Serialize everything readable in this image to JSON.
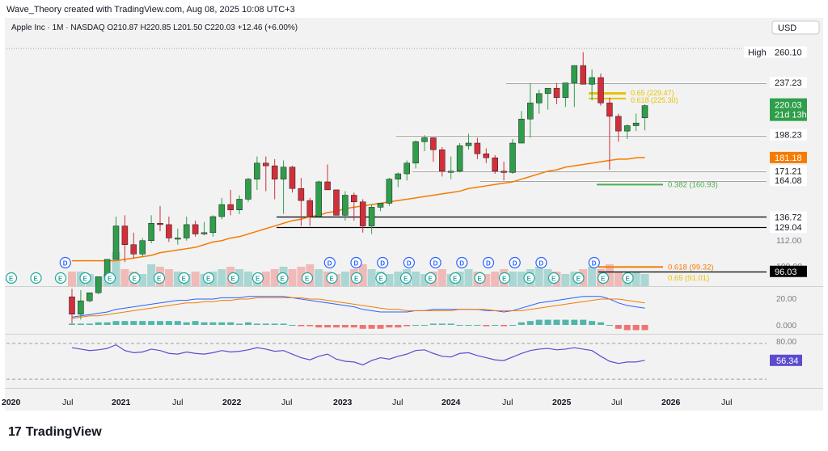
{
  "header": {
    "attribution": "Wave_Theory created with TradingView.com, Aug 08, 2025 10:08 UTC+3"
  },
  "legend": {
    "text": "Apple Inc · 1M · NASDAQ  O210.87  H220.85  L201.50  C220.03  +12.46 (+6.00%)"
  },
  "currency": "USD",
  "brand": {
    "name": "TradingView",
    "mark": "17"
  },
  "colors": {
    "up": "#26a69a",
    "up_fill": "#2e9e4a",
    "down": "#ef5350",
    "down_fill": "#d32f3a",
    "ema": "#f57c00",
    "rsi": "#5b4ccf",
    "fib": "#e6c300",
    "fib_green": "#4caf50"
  },
  "chart_data": [
    {
      "type": "candlestick",
      "title": "Apple Inc · 1M · NASDAQ",
      "ohlc_legend": {
        "open": 210.87,
        "high": 220.85,
        "low": 201.5,
        "close": 220.03,
        "change": 12.46,
        "change_pct": 6.0
      },
      "x_tick_labels": [
        "2020",
        "Jul",
        "2021",
        "Jul",
        "2022",
        "Jul",
        "2023",
        "Jul",
        "2024",
        "Jul",
        "2025",
        "Jul",
        "2026",
        "Jul"
      ],
      "y_tick_labels": [
        "112.00",
        "100.00"
      ],
      "ylim": [
        85,
        270
      ],
      "candles": [
        {
          "o": 77,
          "h": 83,
          "l": 57,
          "c": 64
        },
        {
          "o": 64,
          "h": 82,
          "l": 60,
          "c": 74
        },
        {
          "o": 74,
          "h": 80,
          "l": 73,
          "c": 80
        },
        {
          "o": 80,
          "h": 92,
          "l": 79,
          "c": 92
        },
        {
          "o": 92,
          "h": 104,
          "l": 90,
          "c": 105
        },
        {
          "o": 105,
          "h": 137,
          "l": 105,
          "c": 130
        },
        {
          "o": 130,
          "h": 138,
          "l": 103,
          "c": 116
        },
        {
          "o": 116,
          "h": 125,
          "l": 106,
          "c": 109
        },
        {
          "o": 109,
          "h": 121,
          "l": 107,
          "c": 119
        },
        {
          "o": 119,
          "h": 138,
          "l": 117,
          "c": 132
        },
        {
          "o": 132,
          "h": 145,
          "l": 126,
          "c": 131
        },
        {
          "o": 131,
          "h": 137,
          "l": 118,
          "c": 121
        },
        {
          "o": 121,
          "h": 128,
          "l": 116,
          "c": 121
        },
        {
          "o": 121,
          "h": 137,
          "l": 119,
          "c": 131
        },
        {
          "o": 131,
          "h": 134,
          "l": 122,
          "c": 124
        },
        {
          "o": 124,
          "h": 133,
          "l": 123,
          "c": 125
        },
        {
          "o": 125,
          "h": 138,
          "l": 122,
          "c": 137
        },
        {
          "o": 137,
          "h": 151,
          "l": 135,
          "c": 146
        },
        {
          "o": 146,
          "h": 157,
          "l": 138,
          "c": 142
        },
        {
          "o": 142,
          "h": 153,
          "l": 139,
          "c": 150
        },
        {
          "o": 150,
          "h": 166,
          "l": 148,
          "c": 165
        },
        {
          "o": 165,
          "h": 182,
          "l": 157,
          "c": 177
        },
        {
          "o": 177,
          "h": 182,
          "l": 156,
          "c": 175
        },
        {
          "o": 175,
          "h": 180,
          "l": 150,
          "c": 165
        },
        {
          "o": 165,
          "h": 179,
          "l": 139,
          "c": 174
        },
        {
          "o": 174,
          "h": 175,
          "l": 155,
          "c": 158
        },
        {
          "o": 158,
          "h": 166,
          "l": 130,
          "c": 149
        },
        {
          "o": 149,
          "h": 151,
          "l": 130,
          "c": 137
        },
        {
          "o": 137,
          "h": 164,
          "l": 136,
          "c": 163
        },
        {
          "o": 163,
          "h": 176,
          "l": 157,
          "c": 157
        },
        {
          "o": 157,
          "h": 157,
          "l": 138,
          "c": 138
        },
        {
          "o": 138,
          "h": 156,
          "l": 134,
          "c": 153
        },
        {
          "o": 153,
          "h": 155,
          "l": 134,
          "c": 148
        },
        {
          "o": 148,
          "h": 150,
          "l": 125,
          "c": 130
        },
        {
          "o": 130,
          "h": 146,
          "l": 124,
          "c": 144
        },
        {
          "o": 144,
          "h": 147,
          "l": 141,
          "c": 147
        },
        {
          "o": 147,
          "h": 166,
          "l": 145,
          "c": 165
        },
        {
          "o": 165,
          "h": 170,
          "l": 159,
          "c": 169
        },
        {
          "o": 169,
          "h": 179,
          "l": 164,
          "c": 177
        },
        {
          "o": 177,
          "h": 194,
          "l": 173,
          "c": 193
        },
        {
          "o": 193,
          "h": 198,
          "l": 186,
          "c": 196
        },
        {
          "o": 196,
          "h": 196,
          "l": 178,
          "c": 187
        },
        {
          "o": 187,
          "h": 189,
          "l": 167,
          "c": 171
        },
        {
          "o": 171,
          "h": 182,
          "l": 165,
          "c": 171
        },
        {
          "o": 171,
          "h": 192,
          "l": 170,
          "c": 190
        },
        {
          "o": 190,
          "h": 199,
          "l": 187,
          "c": 192
        },
        {
          "o": 192,
          "h": 196,
          "l": 180,
          "c": 184
        },
        {
          "o": 184,
          "h": 188,
          "l": 177,
          "c": 181
        },
        {
          "o": 181,
          "h": 183,
          "l": 169,
          "c": 171
        },
        {
          "o": 171,
          "h": 178,
          "l": 164,
          "c": 170
        },
        {
          "o": 170,
          "h": 195,
          "l": 169,
          "c": 192
        },
        {
          "o": 192,
          "h": 216,
          "l": 192,
          "c": 210
        },
        {
          "o": 210,
          "h": 237,
          "l": 196,
          "c": 222
        },
        {
          "o": 222,
          "h": 232,
          "l": 214,
          "c": 229
        },
        {
          "o": 229,
          "h": 233,
          "l": 217,
          "c": 233
        },
        {
          "o": 233,
          "h": 237,
          "l": 221,
          "c": 226
        },
        {
          "o": 226,
          "h": 237,
          "l": 219,
          "c": 237
        },
        {
          "o": 237,
          "h": 250,
          "l": 219,
          "c": 250
        },
        {
          "o": 250,
          "h": 260,
          "l": 236,
          "c": 236
        },
        {
          "o": 236,
          "h": 247,
          "l": 224,
          "c": 241
        },
        {
          "o": 241,
          "h": 244,
          "l": 220,
          "c": 222
        },
        {
          "o": 222,
          "h": 226,
          "l": 172,
          "c": 212
        },
        {
          "o": 212,
          "h": 214,
          "l": 193,
          "c": 201
        },
        {
          "o": 201,
          "h": 206,
          "l": 195,
          "c": 205
        },
        {
          "o": 205,
          "h": 214,
          "l": 201,
          "c": 207
        },
        {
          "o": 210.87,
          "h": 220.85,
          "l": 201.5,
          "c": 220.03
        }
      ],
      "ema": [
        104,
        104,
        104,
        104,
        104,
        104,
        105,
        106,
        107,
        108,
        110,
        111,
        112,
        113,
        114,
        116,
        118,
        119,
        121,
        122,
        124,
        126,
        128,
        130,
        132,
        134,
        135,
        137,
        138,
        140,
        141,
        143,
        144,
        145,
        146,
        147,
        148,
        149,
        150,
        151,
        152,
        153,
        154,
        155,
        156,
        158,
        159,
        160,
        161,
        162,
        163,
        165,
        167,
        169,
        171,
        172,
        174,
        175,
        176,
        177,
        178,
        179,
        180,
        180,
        181,
        181.18
      ],
      "horizontal_levels": [
        {
          "label": "260.10",
          "value": 260.1,
          "tag": "High"
        },
        {
          "label": "237.23",
          "value": 237.23
        },
        {
          "label": "198.23",
          "value": 198.23
        },
        {
          "label": "171.21",
          "value": 171.21
        },
        {
          "label": "164.08",
          "value": 164.08
        },
        {
          "label": "136.72",
          "value": 136.72
        },
        {
          "label": "129.04",
          "value": 129.04
        },
        {
          "label": "96.03",
          "value": 96.03
        }
      ],
      "price_labels": [
        {
          "label": "220.03",
          "sub": "21d 13h",
          "value": 220.03
        },
        {
          "label": "181.18",
          "value": 181.18
        }
      ],
      "fib_labels": [
        {
          "label": "0.618 (99.32)",
          "value": 99.32
        },
        {
          "label": "0.65 (91.01)",
          "value": 91.01
        },
        {
          "label": "0.382 (160.93)",
          "value": 160.93
        }
      ],
      "overlapping_fib_labels": [
        "0.65 (229.47)",
        "0.618 (225.30)"
      ],
      "event_markers": [
        "D",
        "E"
      ],
      "volume": [
        6,
        6,
        5,
        4,
        5,
        14,
        7,
        6,
        5,
        9,
        8,
        7,
        6,
        5,
        6,
        5,
        6,
        7,
        8,
        7,
        6,
        5,
        6,
        7,
        8,
        7,
        8,
        9,
        7,
        6,
        5,
        6,
        7,
        9,
        7,
        6,
        5,
        6,
        7,
        6,
        5,
        6,
        7,
        5,
        6,
        7,
        6,
        5,
        6,
        7,
        6,
        6,
        7,
        8,
        7,
        6,
        5,
        6,
        7,
        8,
        7,
        9,
        6,
        5,
        6,
        5
      ]
    },
    {
      "type": "line",
      "title": "MACD",
      "y_tick_labels": [
        "20.00",
        "0.000"
      ],
      "macd": [
        6,
        7,
        8,
        9,
        10,
        12,
        13,
        14,
        15,
        16,
        17,
        18,
        19,
        19,
        20,
        20,
        20,
        21,
        21,
        21,
        22,
        22,
        22,
        22,
        22,
        21,
        20,
        19,
        18,
        17,
        16,
        15,
        14,
        12,
        11,
        10,
        10,
        10,
        10,
        11,
        11,
        12,
        12,
        12,
        12,
        12,
        12,
        11,
        11,
        10,
        11,
        13,
        15,
        17,
        18,
        19,
        20,
        21,
        22,
        22,
        22,
        20,
        17,
        15,
        14,
        13
      ],
      "signal": [
        5,
        6,
        7,
        7,
        8,
        9,
        10,
        11,
        12,
        13,
        14,
        15,
        16,
        17,
        17,
        18,
        18,
        19,
        19,
        20,
        20,
        21,
        21,
        21,
        21,
        21,
        21,
        20,
        20,
        19,
        18,
        17,
        16,
        15,
        14,
        13,
        12,
        12,
        11,
        11,
        11,
        11,
        11,
        11,
        12,
        12,
        12,
        12,
        11,
        11,
        11,
        11,
        12,
        13,
        14,
        15,
        16,
        17,
        18,
        19,
        20,
        20,
        20,
        19,
        18,
        17
      ],
      "histogram": [
        1,
        1,
        1,
        2,
        2,
        3,
        3,
        3,
        3,
        3,
        3,
        3,
        3,
        2,
        3,
        2,
        2,
        2,
        2,
        1,
        2,
        1,
        1,
        1,
        1,
        0,
        -1,
        -1,
        -2,
        -2,
        -2,
        -2,
        -2,
        -3,
        -3,
        -3,
        -2,
        -2,
        -1,
        0,
        0,
        1,
        1,
        1,
        0,
        0,
        0,
        -1,
        0,
        -1,
        0,
        2,
        3,
        4,
        4,
        4,
        4,
        4,
        4,
        3,
        2,
        0,
        -3,
        -4,
        -4,
        -4
      ]
    },
    {
      "type": "line",
      "title": "RSI",
      "y_tick_labels": [
        "80.00"
      ],
      "ylim": [
        20,
        90
      ],
      "current": 56.34,
      "values": [
        74,
        72,
        70,
        71,
        73,
        78,
        70,
        67,
        68,
        72,
        70,
        66,
        65,
        68,
        66,
        65,
        67,
        70,
        68,
        69,
        71,
        74,
        72,
        69,
        70,
        65,
        60,
        57,
        62,
        65,
        58,
        55,
        54,
        50,
        56,
        60,
        58,
        62,
        65,
        70,
        71,
        66,
        62,
        61,
        66,
        67,
        63,
        60,
        57,
        56,
        61,
        66,
        70,
        72,
        73,
        71,
        72,
        74,
        72,
        70,
        62,
        55,
        52,
        54,
        54,
        56.34
      ]
    }
  ]
}
